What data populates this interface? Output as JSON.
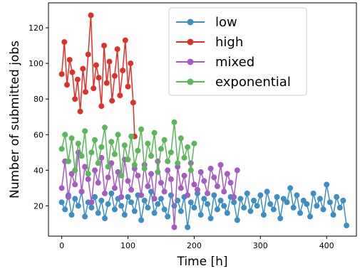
{
  "chart_data": {
    "type": "line",
    "xlabel": "Time [h]",
    "ylabel": "Number of submitted jobs",
    "xlim": [
      -20,
      445
    ],
    "ylim": [
      3,
      134
    ],
    "xticks": [
      0,
      100,
      200,
      300,
      400
    ],
    "yticks": [
      20,
      40,
      60,
      80,
      100,
      120
    ],
    "xtick_labels": [
      "0",
      "100",
      "200",
      "300",
      "400"
    ],
    "ytick_labels": [
      "20",
      "40",
      "60",
      "80",
      "100",
      "120"
    ],
    "grid": false,
    "legend_position": "top-right",
    "marker": "circle",
    "series": [
      {
        "name": "low",
        "color": "#3d8ec4",
        "x": [
          0,
          5,
          10,
          15,
          20,
          25,
          30,
          35,
          40,
          45,
          50,
          55,
          60,
          65,
          70,
          75,
          80,
          85,
          90,
          95,
          100,
          105,
          110,
          115,
          120,
          125,
          130,
          135,
          140,
          145,
          150,
          155,
          160,
          165,
          170,
          175,
          180,
          185,
          190,
          195,
          200,
          205,
          210,
          215,
          220,
          225,
          230,
          235,
          240,
          245,
          250,
          255,
          260,
          265,
          270,
          275,
          280,
          285,
          290,
          295,
          300,
          305,
          310,
          315,
          320,
          325,
          330,
          335,
          340,
          345,
          350,
          355,
          360,
          365,
          370,
          375,
          380,
          385,
          390,
          395,
          400,
          405,
          410,
          415,
          420,
          425,
          430
        ],
        "values": [
          22,
          18,
          26,
          15,
          24,
          20,
          28,
          14,
          22,
          19,
          25,
          16,
          23,
          13,
          21,
          27,
          18,
          24,
          20,
          15,
          25,
          22,
          17,
          26,
          12,
          23,
          19,
          28,
          16,
          21,
          24,
          18,
          14,
          26,
          20,
          23,
          17,
          25,
          8,
          22,
          19,
          27,
          15,
          24,
          21,
          13,
          26,
          18,
          23,
          20,
          16,
          25,
          22,
          12,
          24,
          19,
          27,
          17,
          23,
          20,
          26,
          15,
          28,
          21,
          18,
          25,
          13,
          24,
          22,
          30,
          19,
          26,
          16,
          23,
          21,
          14,
          27,
          20,
          24,
          18,
          32,
          22,
          15,
          25,
          19,
          23,
          9
        ]
      },
      {
        "name": "high",
        "color": "#e0302a",
        "x": [
          0,
          4,
          8,
          12,
          16,
          20,
          24,
          28,
          32,
          36,
          40,
          44,
          48,
          52,
          56,
          60,
          64,
          68,
          72,
          76,
          80,
          84,
          88,
          92,
          96,
          100,
          104,
          108,
          110
        ],
        "values": [
          94,
          112,
          88,
          102,
          95,
          80,
          91,
          73,
          97,
          84,
          105,
          127,
          86,
          99,
          92,
          76,
          110,
          89,
          101,
          79,
          93,
          108,
          82,
          96,
          113,
          87,
          100,
          78,
          59
        ]
      },
      {
        "name": "mixed",
        "color": "#a45cc0",
        "x": [
          0,
          5,
          10,
          15,
          20,
          25,
          30,
          35,
          40,
          45,
          50,
          55,
          60,
          65,
          70,
          75,
          80,
          85,
          90,
          95,
          100,
          105,
          110,
          115,
          120,
          125,
          130,
          135,
          140,
          145,
          150,
          155,
          160,
          165,
          170,
          175,
          180,
          185,
          190,
          195,
          200,
          205,
          210,
          215,
          220,
          225,
          230,
          235,
          240,
          245,
          250,
          255,
          260,
          265
        ],
        "values": [
          30,
          45,
          25,
          38,
          32,
          50,
          28,
          42,
          35,
          22,
          40,
          33,
          47,
          27,
          36,
          44,
          30,
          39,
          25,
          46,
          34,
          29,
          41,
          37,
          26,
          43,
          31,
          38,
          24,
          45,
          33,
          28,
          40,
          35,
          8,
          42,
          30,
          37,
          26,
          44,
          32,
          29,
          39,
          34,
          27,
          41,
          36,
          31,
          43,
          28,
          38,
          33,
          25,
          40
        ]
      },
      {
        "name": "exponential",
        "color": "#5ab75a",
        "x": [
          0,
          5,
          10,
          15,
          20,
          25,
          30,
          35,
          40,
          45,
          50,
          55,
          60,
          65,
          70,
          75,
          80,
          85,
          90,
          95,
          100,
          105,
          110,
          115,
          120,
          125,
          130,
          135,
          140,
          145,
          150,
          155,
          160,
          165,
          170,
          175,
          180,
          185,
          190,
          195,
          200
        ],
        "values": [
          52,
          60,
          45,
          58,
          40,
          55,
          48,
          62,
          38,
          50,
          57,
          44,
          53,
          64,
          42,
          56,
          49,
          60,
          37,
          54,
          46,
          59,
          43,
          51,
          63,
          41,
          55,
          48,
          61,
          39,
          52,
          57,
          45,
          50,
          67,
          44,
          58,
          47,
          53,
          40,
          55
        ]
      }
    ]
  }
}
